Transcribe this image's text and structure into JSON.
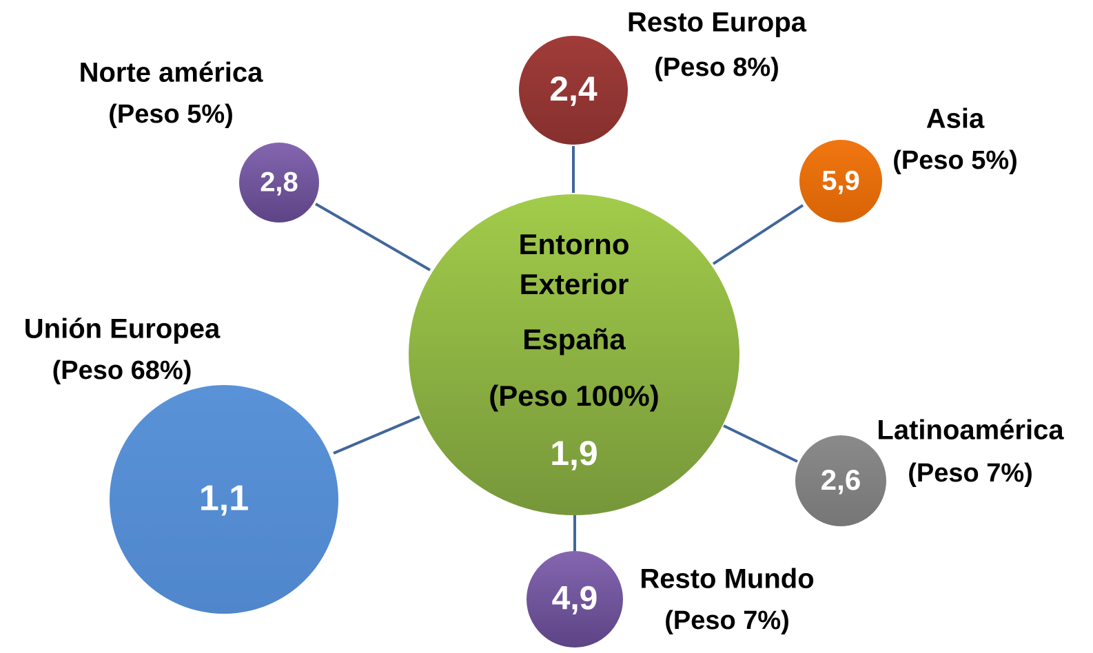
{
  "center": {
    "lines": [
      "Entorno",
      "Exterior",
      "España",
      "(Peso 100%)"
    ],
    "value": "1,9"
  },
  "nodes": [
    {
      "name": "Resto Europa",
      "weight": "(Peso 8%)",
      "value": "2,4"
    },
    {
      "name": "Norte américa",
      "weight": "(Peso 5%)",
      "value": "2,8"
    },
    {
      "name": "Asia",
      "weight": "(Peso 5%)",
      "value": "5,9"
    },
    {
      "name": "Unión Europea",
      "weight": "(Peso 68%)",
      "value": "1,1"
    },
    {
      "name": "Latinoamérica",
      "weight": "(Peso 7%)",
      "value": "2,6"
    },
    {
      "name": "Resto Mundo",
      "weight": "(Peso 7%)",
      "value": "4,9"
    }
  ]
}
